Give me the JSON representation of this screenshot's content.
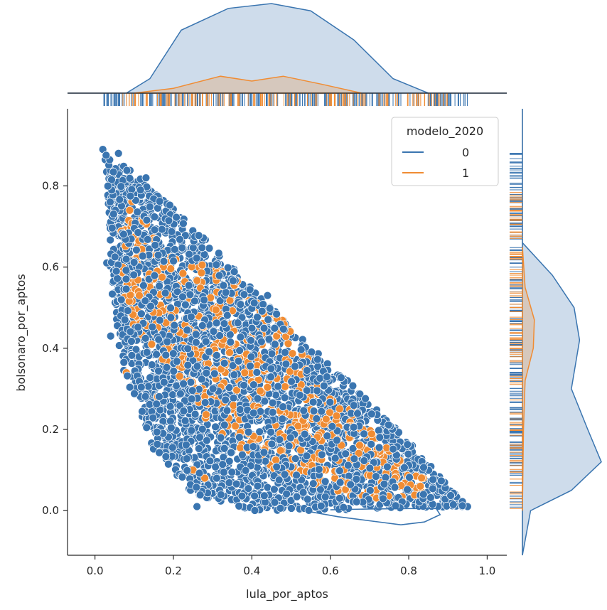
{
  "chart_data": {
    "type": "scatter",
    "subtype": "jointplot",
    "xlabel": "lula_por_aptos",
    "ylabel": "bolsonaro_por_aptos",
    "xlim": [
      -0.07,
      1.05
    ],
    "ylim": [
      -0.11,
      0.99
    ],
    "x_ticks": [
      "0.0",
      "0.2",
      "0.4",
      "0.6",
      "0.8",
      "1.0"
    ],
    "y_ticks": [
      "0.0",
      "0.2",
      "0.4",
      "0.6",
      "0.8"
    ],
    "grid": false,
    "legend": {
      "title": "modelo_2020",
      "placement": "top-right",
      "entries": [
        "0",
        "1"
      ]
    },
    "series": [
      {
        "name": "0",
        "color": "#3a75b0",
        "marker": "circle",
        "cloud_envelope": [
          [
            0.02,
            0.89
          ],
          [
            0.12,
            0.82
          ],
          [
            0.3,
            0.65
          ],
          [
            0.5,
            0.45
          ],
          [
            0.7,
            0.27
          ],
          [
            0.85,
            0.12
          ],
          [
            0.95,
            0.01
          ],
          [
            0.6,
            0.0
          ],
          [
            0.4,
            0.0
          ],
          [
            0.25,
            0.04
          ],
          [
            0.15,
            0.15
          ],
          [
            0.07,
            0.35
          ],
          [
            0.04,
            0.55
          ],
          [
            0.03,
            0.8
          ]
        ],
        "outliers": [
          [
            0.02,
            0.89
          ],
          [
            0.06,
            0.88
          ],
          [
            0.13,
            0.82
          ],
          [
            0.26,
            0.01
          ],
          [
            0.95,
            0.01
          ],
          [
            0.03,
            0.61
          ],
          [
            0.04,
            0.43
          ],
          [
            0.13,
            0.21
          ],
          [
            0.44,
            0.53
          ]
        ],
        "x_marginal_kde": [
          [
            -0.07,
            0.0
          ],
          [
            0.08,
            0.0
          ],
          [
            0.14,
            0.3
          ],
          [
            0.22,
            1.3
          ],
          [
            0.34,
            1.75
          ],
          [
            0.45,
            1.85
          ],
          [
            0.55,
            1.7
          ],
          [
            0.66,
            1.1
          ],
          [
            0.76,
            0.3
          ],
          [
            0.85,
            0.0
          ],
          [
            1.05,
            0.0
          ]
        ],
        "y_marginal_kde": [
          [
            -0.11,
            0.0
          ],
          [
            0.0,
            0.15
          ],
          [
            0.05,
            0.9
          ],
          [
            0.12,
            1.45
          ],
          [
            0.2,
            1.2
          ],
          [
            0.3,
            0.9
          ],
          [
            0.42,
            1.05
          ],
          [
            0.5,
            0.95
          ],
          [
            0.58,
            0.55
          ],
          [
            0.66,
            0.0
          ],
          [
            0.99,
            0.0
          ]
        ],
        "contour_x": [
          0.55,
          0.6,
          0.7,
          0.8,
          0.86,
          0.88,
          0.83,
          0.72,
          0.62,
          0.55
        ]
      },
      {
        "name": "1",
        "color": "#f08c33",
        "marker": "circle",
        "cloud_envelope": [
          [
            0.08,
            0.79
          ],
          [
            0.2,
            0.62
          ],
          [
            0.32,
            0.61
          ],
          [
            0.5,
            0.45
          ],
          [
            0.6,
            0.3
          ],
          [
            0.75,
            0.15
          ],
          [
            0.9,
            0.03
          ],
          [
            0.65,
            0.03
          ],
          [
            0.45,
            0.1
          ],
          [
            0.3,
            0.2
          ],
          [
            0.2,
            0.35
          ],
          [
            0.08,
            0.45
          ],
          [
            0.06,
            0.7
          ]
        ],
        "outliers": [
          [
            0.08,
            0.34
          ],
          [
            0.28,
            0.08
          ],
          [
            0.25,
            0.1
          ],
          [
            0.16,
            0.28
          ]
        ],
        "x_marginal_kde": [
          [
            0.1,
            0.0
          ],
          [
            0.2,
            0.1
          ],
          [
            0.32,
            0.35
          ],
          [
            0.4,
            0.25
          ],
          [
            0.48,
            0.35
          ],
          [
            0.58,
            0.18
          ],
          [
            0.68,
            0.0
          ]
        ],
        "y_marginal_kde": [
          [
            0.0,
            0.0
          ],
          [
            0.2,
            0.02
          ],
          [
            0.32,
            0.05
          ],
          [
            0.4,
            0.2
          ],
          [
            0.47,
            0.22
          ],
          [
            0.55,
            0.05
          ],
          [
            0.65,
            0.0
          ]
        ]
      }
    ]
  }
}
